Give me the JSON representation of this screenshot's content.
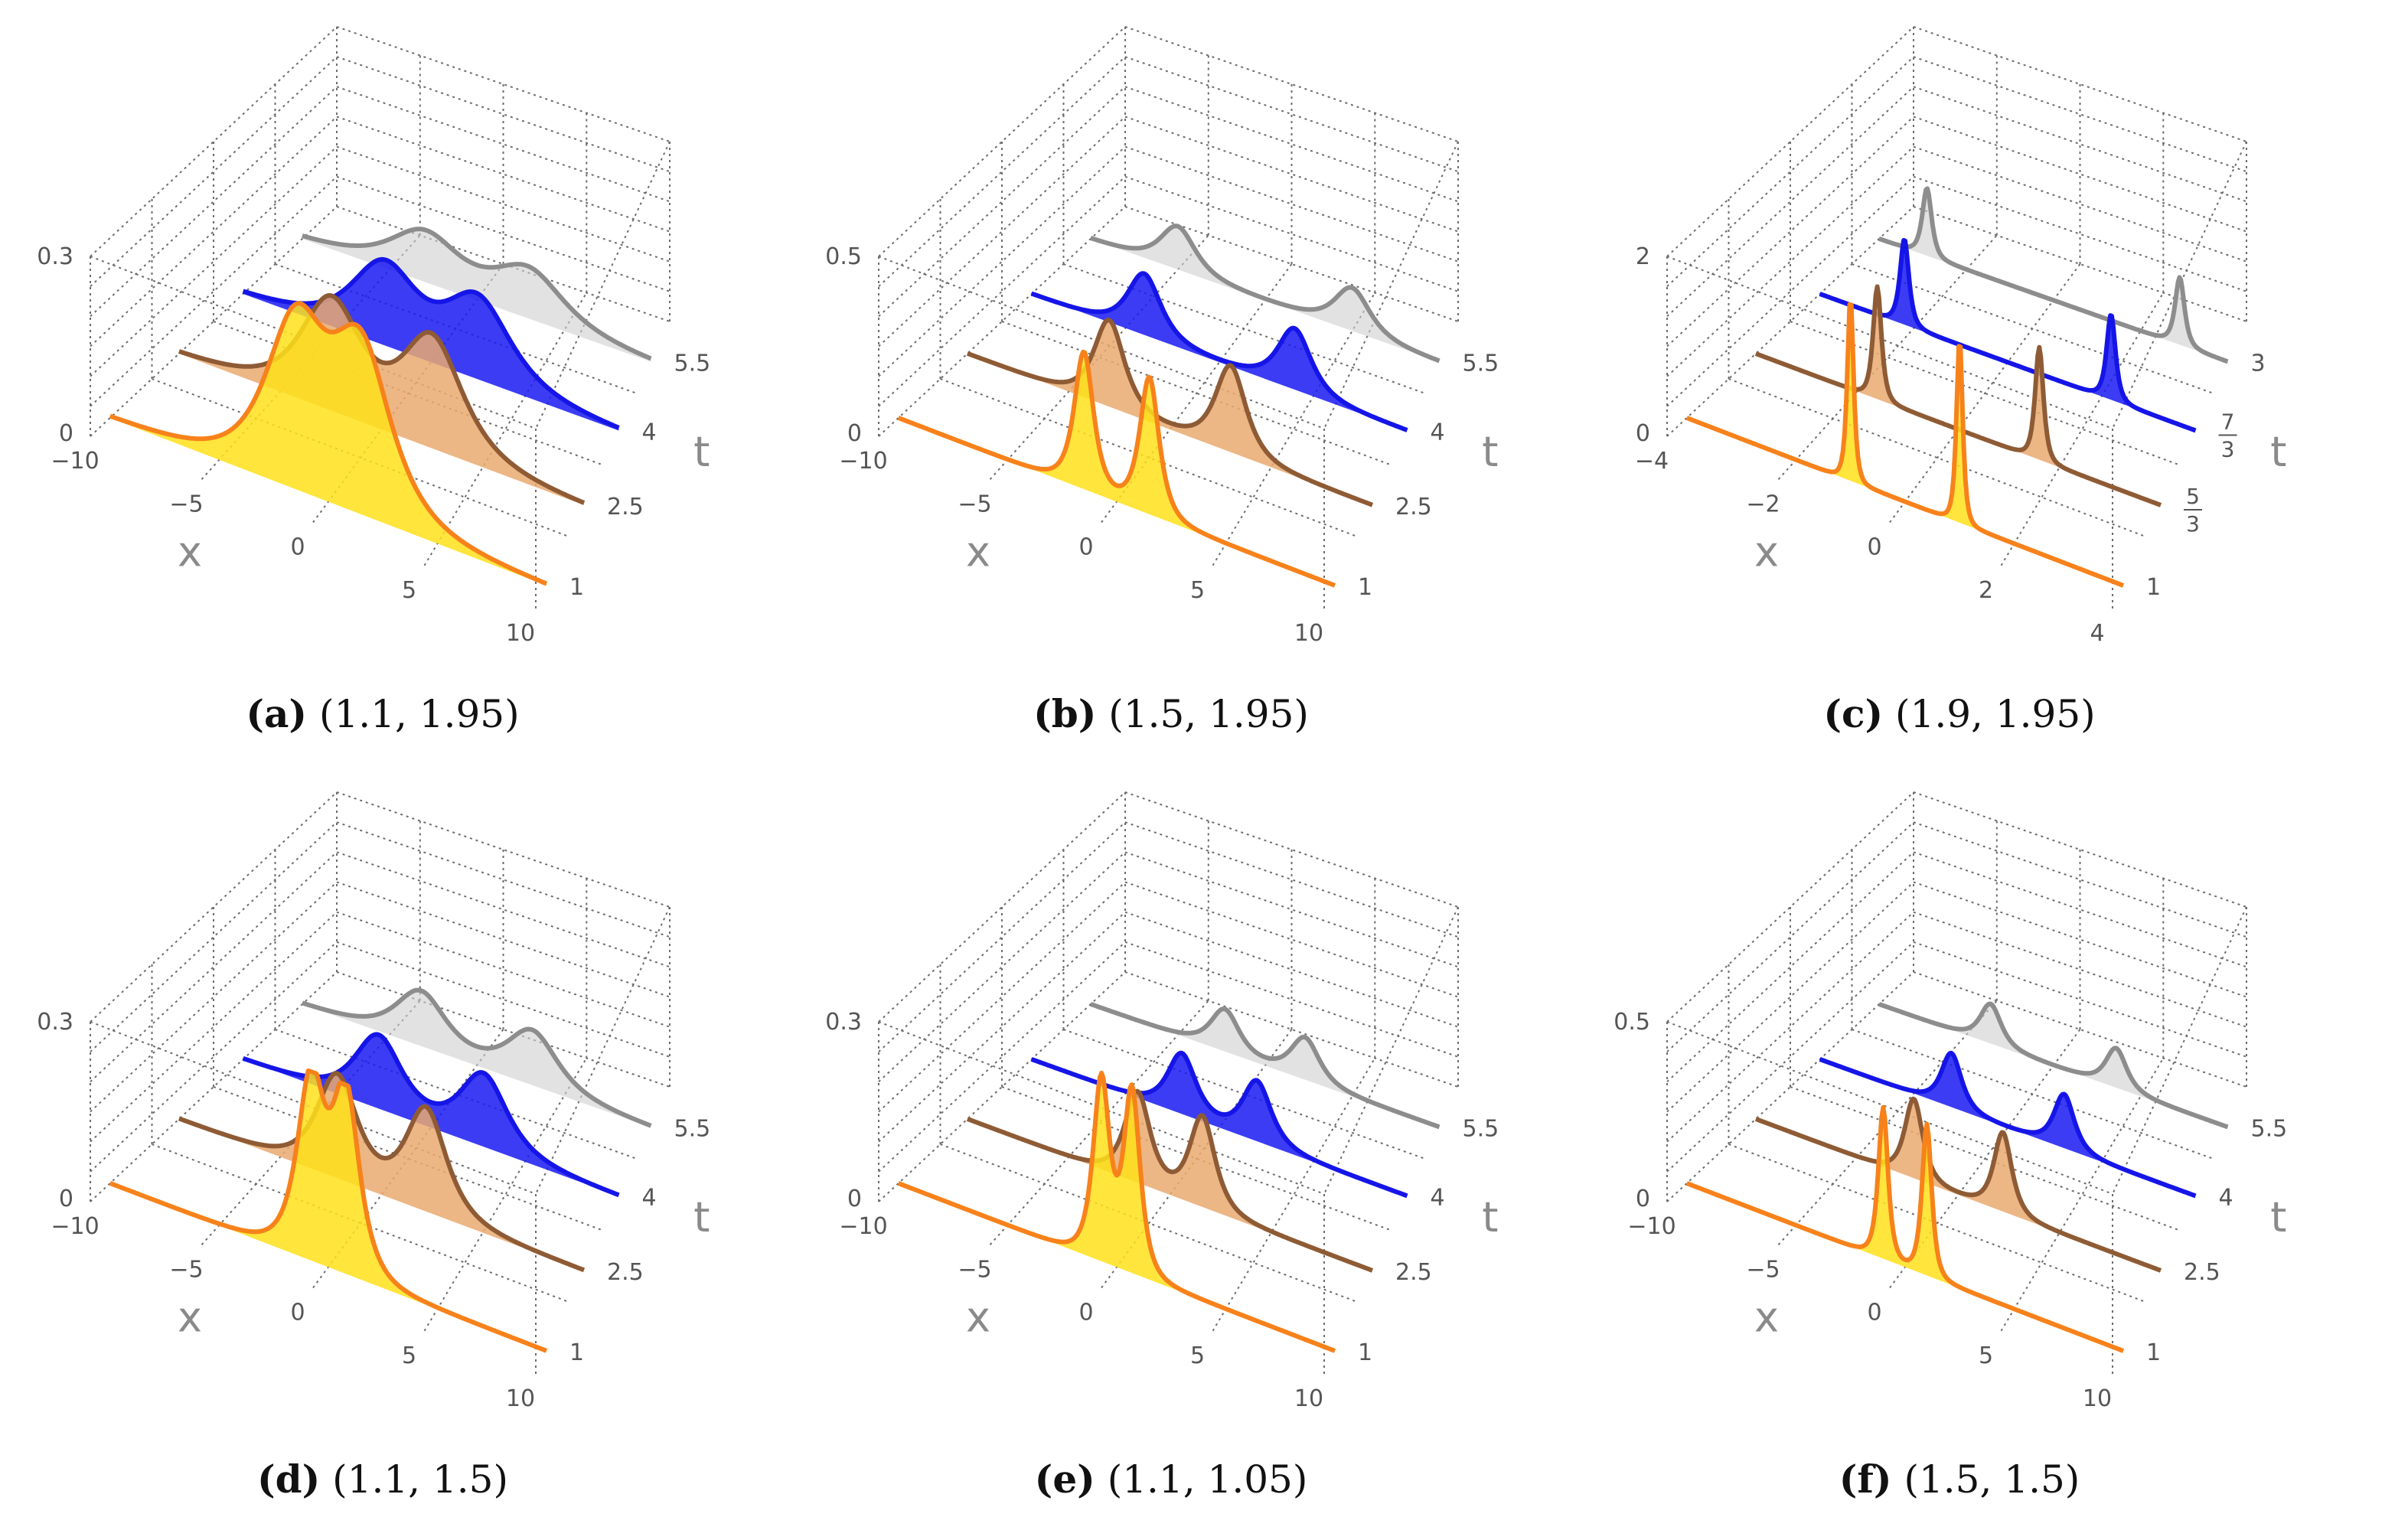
{
  "figure_type": "3D waterfall plots of wave profiles |u(x,t)| at four time slices",
  "colors": {
    "grid": "#6d6d6d",
    "t1_line": "#F7821B",
    "t1_fill": "#FFE11A",
    "t2_line": "#8E5B35",
    "t2_fill": "#E9A970",
    "t3_line": "#1515E8",
    "t3_fill": "#1A1AF2",
    "t4_line": "#8D8D8D",
    "t4_fill": "#CFCFCF"
  },
  "chart_data": [
    {
      "id": "a",
      "type": "waterfall3d",
      "caption_letter": "(a)",
      "caption_params": "(1.1, 1.95)",
      "xlabel": "x",
      "tlabel": "t",
      "x_range": [
        -10,
        10
      ],
      "x_ticks": [
        "−10",
        "−5",
        "0",
        "5",
        "10"
      ],
      "z_range": [
        0,
        0.3
      ],
      "z_ticks": [
        "0",
        "0.3"
      ],
      "t_ticks": [
        "1",
        "2.5",
        "4",
        "5.5"
      ],
      "series": [
        {
          "t": "1",
          "peaks": [
            [
              -1.5,
              0.26,
              2.2
            ],
            [
              1.5,
              0.26,
              2.2
            ]
          ]
        },
        {
          "t": "2.5",
          "peaks": [
            [
              -2.5,
              0.18,
              2.4
            ],
            [
              2.5,
              0.18,
              2.4
            ]
          ]
        },
        {
          "t": "4",
          "peaks": [
            [
              -2.5,
              0.13,
              2.8
            ],
            [
              2.5,
              0.13,
              2.8
            ]
          ]
        },
        {
          "t": "5.5",
          "peaks": [
            [
              -3.0,
              0.08,
              3.2
            ],
            [
              3.0,
              0.08,
              3.2
            ]
          ]
        }
      ]
    },
    {
      "id": "b",
      "type": "waterfall3d",
      "caption_letter": "(b)",
      "caption_params": "(1.5, 1.95)",
      "xlabel": "x",
      "tlabel": "t",
      "x_range": [
        -10,
        10
      ],
      "x_ticks": [
        "−10",
        "−5",
        "0",
        "5",
        "10"
      ],
      "z_range": [
        0,
        0.5
      ],
      "z_ticks": [
        "0",
        "0.5"
      ],
      "t_ticks": [
        "1",
        "2.5",
        "4",
        "5.5"
      ],
      "series": [
        {
          "t": "1",
          "peaks": [
            [
              -1.5,
              0.38,
              0.7
            ],
            [
              1.5,
              0.38,
              0.7
            ]
          ]
        },
        {
          "t": "2.5",
          "peaks": [
            [
              -3.0,
              0.24,
              1.2
            ],
            [
              3.0,
              0.24,
              1.2
            ]
          ]
        },
        {
          "t": "4",
          "peaks": [
            [
              -4.0,
              0.17,
              1.4
            ],
            [
              4.0,
              0.17,
              1.4
            ]
          ]
        },
        {
          "t": "5.5",
          "peaks": [
            [
              -5.0,
              0.12,
              1.6
            ],
            [
              5.0,
              0.12,
              1.6
            ]
          ]
        }
      ]
    },
    {
      "id": "c",
      "type": "waterfall3d",
      "caption_letter": "(c)",
      "caption_params": "(1.9, 1.95)",
      "xlabel": "x",
      "tlabel": "t",
      "x_range": [
        -4,
        4
      ],
      "x_ticks": [
        "−4",
        "−2",
        "0",
        "2",
        "4"
      ],
      "z_range": [
        0,
        2
      ],
      "z_ticks": [
        "0",
        "2"
      ],
      "t_ticks": [
        "1",
        "5/3",
        "7/3",
        "3"
      ],
      "series": [
        {
          "t": "1",
          "peaks": [
            [
              -1.0,
              2.05,
              0.09
            ],
            [
              1.0,
              2.05,
              0.09
            ]
          ]
        },
        {
          "t": "5/3",
          "peaks": [
            [
              -1.6,
              1.25,
              0.13
            ],
            [
              1.6,
              1.25,
              0.13
            ]
          ]
        },
        {
          "t": "7/3",
          "peaks": [
            [
              -2.2,
              0.95,
              0.15
            ],
            [
              2.2,
              0.95,
              0.15
            ]
          ]
        },
        {
          "t": "3",
          "peaks": [
            [
              -2.9,
              0.75,
              0.17
            ],
            [
              2.9,
              0.75,
              0.17
            ]
          ]
        }
      ]
    },
    {
      "id": "d",
      "type": "waterfall3d",
      "caption_letter": "(d)",
      "caption_params": "(1.1, 1.5)",
      "xlabel": "x",
      "tlabel": "t",
      "x_range": [
        -10,
        10
      ],
      "x_ticks": [
        "−10",
        "−5",
        "0",
        "5",
        "10"
      ],
      "z_range": [
        0,
        0.3
      ],
      "z_ticks": [
        "0",
        "0.3"
      ],
      "t_ticks": [
        "1",
        "2.5",
        "4",
        "5.5"
      ],
      "series": [
        {
          "t": "1",
          "peaks": [
            [
              -0.8,
              0.29,
              1.0
            ],
            [
              0.8,
              0.29,
              1.0
            ]
          ]
        },
        {
          "t": "2.5",
          "peaks": [
            [
              -2.2,
              0.17,
              1.6
            ],
            [
              2.2,
              0.17,
              1.6
            ]
          ]
        },
        {
          "t": "4",
          "peaks": [
            [
              -2.8,
              0.12,
              2.0
            ],
            [
              2.8,
              0.12,
              2.0
            ]
          ]
        },
        {
          "t": "5.5",
          "peaks": [
            [
              -3.2,
              0.09,
              2.3
            ],
            [
              3.2,
              0.09,
              2.3
            ]
          ]
        }
      ]
    },
    {
      "id": "e",
      "type": "waterfall3d",
      "caption_letter": "(e)",
      "caption_params": "(1.1, 1.05)",
      "xlabel": "x",
      "tlabel": "t",
      "x_range": [
        -10,
        10
      ],
      "x_ticks": [
        "−10",
        "−5",
        "0",
        "5",
        "10"
      ],
      "z_range": [
        0,
        0.3
      ],
      "z_ticks": [
        "0",
        "0.3"
      ],
      "t_ticks": [
        "1",
        "2.5",
        "4",
        "5.5"
      ],
      "series": [
        {
          "t": "1",
          "peaks": [
            [
              -0.7,
              0.3,
              0.6
            ],
            [
              0.7,
              0.3,
              0.6
            ]
          ]
        },
        {
          "t": "2.5",
          "peaks": [
            [
              -1.6,
              0.15,
              1.0
            ],
            [
              1.6,
              0.15,
              1.0
            ]
          ]
        },
        {
          "t": "4",
          "peaks": [
            [
              -2.0,
              0.1,
              1.2
            ],
            [
              2.0,
              0.1,
              1.2
            ]
          ]
        },
        {
          "t": "5.5",
          "peaks": [
            [
              -2.3,
              0.07,
              1.3
            ],
            [
              2.3,
              0.07,
              1.3
            ]
          ]
        }
      ]
    },
    {
      "id": "f",
      "type": "waterfall3d",
      "caption_letter": "(f)",
      "caption_params": "(1.5, 1.5)",
      "xlabel": "x",
      "tlabel": "t",
      "x_range": [
        -10,
        10
      ],
      "x_ticks": [
        "−10",
        "−5",
        "0",
        "5",
        "10"
      ],
      "z_range": [
        0,
        0.5
      ],
      "z_ticks": [
        "0",
        "0.5"
      ],
      "t_ticks": [
        "1",
        "2.5",
        "4",
        "5.5"
      ],
      "series": [
        {
          "t": "1",
          "peaks": [
            [
              -1.0,
              0.42,
              0.35
            ],
            [
              1.0,
              0.42,
              0.35
            ]
          ]
        },
        {
          "t": "2.5",
          "peaks": [
            [
              -2.2,
              0.22,
              0.7
            ],
            [
              2.2,
              0.22,
              0.7
            ]
          ]
        },
        {
          "t": "4",
          "peaks": [
            [
              -3.0,
              0.15,
              0.85
            ],
            [
              3.0,
              0.15,
              0.85
            ]
          ]
        },
        {
          "t": "5.5",
          "peaks": [
            [
              -3.6,
              0.11,
              0.95
            ],
            [
              3.6,
              0.11,
              0.95
            ]
          ]
        }
      ]
    }
  ]
}
